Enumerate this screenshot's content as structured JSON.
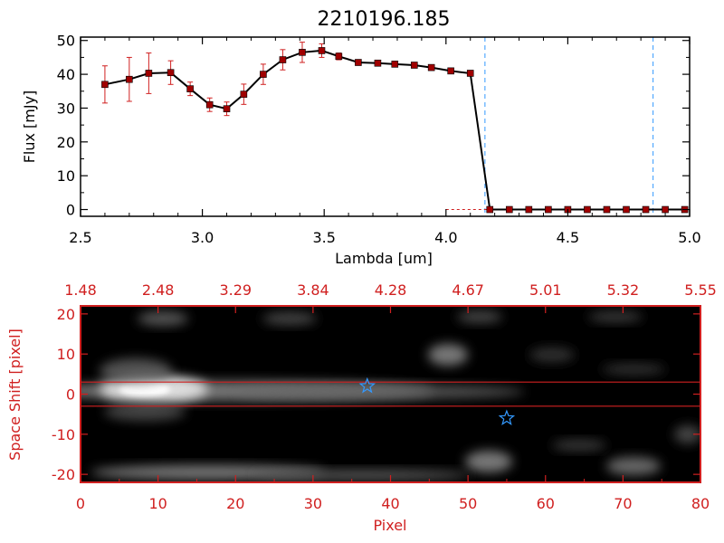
{
  "chart_data": [
    {
      "type": "line",
      "title": "2210196.185",
      "xlabel": "Lambda [um]",
      "ylabel": "Flux [mJy]",
      "xlim": [
        2.5,
        5.0
      ],
      "ylim": [
        -2,
        51
      ],
      "xticks": [
        "2.5",
        "3.0",
        "3.5",
        "4.0",
        "4.5",
        "5.0"
      ],
      "yticks": [
        "0",
        "10",
        "20",
        "30",
        "40",
        "50"
      ],
      "reference_lines_x": [
        4.16,
        4.85
      ],
      "colors": {
        "line": "#000000",
        "marker": "#a00000",
        "error_bar": "#d02020",
        "reference": "#3399ff"
      },
      "series": [
        {
          "x": [
            2.6,
            2.7,
            2.78,
            2.87,
            2.95,
            3.03,
            3.1,
            3.17,
            3.25,
            3.33,
            3.41,
            3.49,
            3.56,
            3.64,
            3.72,
            3.79,
            3.87,
            3.94,
            4.02,
            4.1,
            4.18,
            4.26,
            4.34,
            4.42,
            4.5,
            4.58,
            4.66,
            4.74,
            4.82,
            4.9,
            4.98
          ],
          "y": [
            37,
            38.5,
            40.3,
            40.5,
            35.7,
            31,
            29.8,
            34.1,
            40,
            44.3,
            46.5,
            47,
            45.3,
            43.5,
            43.3,
            43,
            42.7,
            42,
            41,
            40.3,
            0,
            0,
            0,
            0,
            0,
            0,
            0,
            0,
            0,
            0,
            0
          ],
          "yerr": [
            5.5,
            6.5,
            6,
            3.5,
            2,
            2,
            2,
            3,
            3,
            3,
            3,
            2,
            1,
            0.5,
            0.5,
            0.5,
            0.5,
            0.5,
            0.5,
            0.5,
            0,
            0,
            0,
            0,
            0,
            0,
            0,
            0,
            0,
            0,
            0
          ]
        }
      ]
    },
    {
      "type": "heatmap",
      "xlabel": "Pixel",
      "ylabel": "Space Shift [pixel]",
      "xlim": [
        0,
        80
      ],
      "ylim": [
        -22,
        22
      ],
      "xticks": [
        "0",
        "10",
        "20",
        "30",
        "40",
        "50",
        "60",
        "70",
        "80"
      ],
      "yticks": [
        "-20",
        "-10",
        "0",
        "10",
        "20"
      ],
      "top_axis_ticks": [
        "1.48",
        "2.48",
        "3.29",
        "3.84",
        "4.28",
        "4.67",
        "5.01",
        "5.32",
        "5.55"
      ],
      "aperture_y": [
        -3,
        3
      ],
      "markers": [
        {
          "label": "star",
          "x": 37,
          "y": 2
        },
        {
          "label": "star",
          "x": 55,
          "y": -6
        }
      ],
      "colors": {
        "axes": "#d02020",
        "background": "#000000",
        "marker": "#3399ff"
      }
    }
  ]
}
